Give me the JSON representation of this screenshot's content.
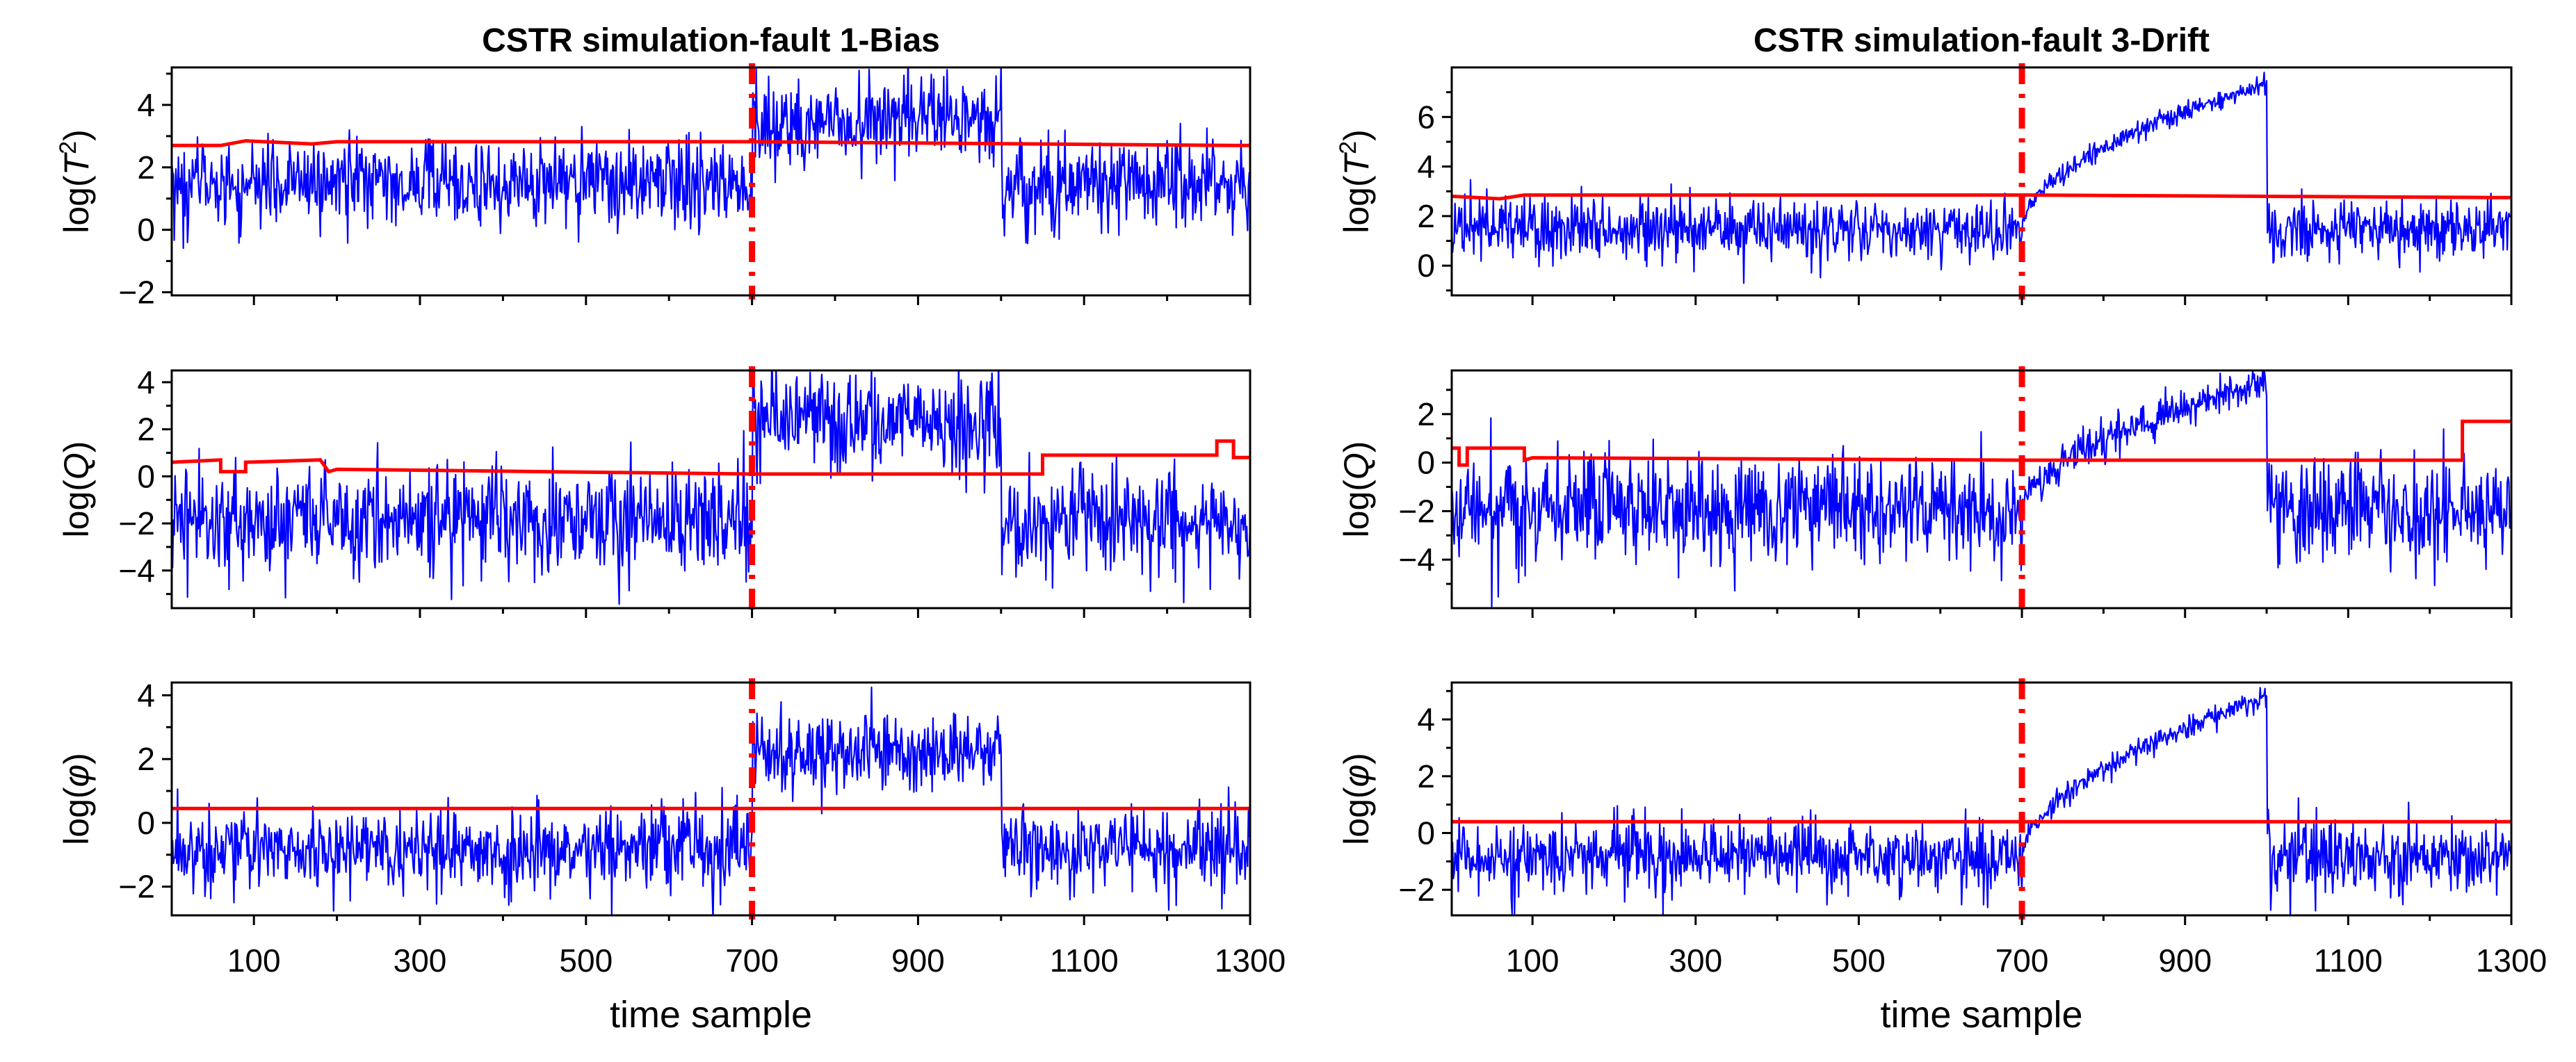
{
  "chart_data": {
    "type": "line",
    "panels": [
      {
        "title": "CSTR simulation-fault 1-Bias",
        "xlabel": "time sample",
        "xlim": [
          1,
          1300
        ],
        "xticks": [
          100,
          300,
          500,
          700,
          900,
          1100,
          1300
        ],
        "fault_start": 700,
        "fault_end": 1000,
        "subplots": [
          {
            "ylabel_base": "log(",
            "ylabel_var": "T",
            "ylabel_sup": "2",
            "ylabel_close": ")",
            "ylim": [
              -2.1,
              5.2
            ],
            "yticks": [
              -2,
              0,
              2,
              4
            ],
            "series": [
              {
                "name": "monitoring statistic",
                "color": "#0000ff",
                "baseline_mean": 1.5,
                "noise_sd": 0.7,
                "fault_profile": "step",
                "fault_level": 3.4
              },
              {
                "name": "control limit",
                "color": "#ff0000",
                "x": [
                  1,
                  60,
                  90,
                  170,
                  200,
                  700,
                  1280,
                  1300
                ],
                "y": [
                  2.7,
                  2.7,
                  2.85,
                  2.75,
                  2.82,
                  2.82,
                  2.7,
                  2.7
                ]
              }
            ]
          },
          {
            "ylabel_base": "log(",
            "ylabel_var": "Q",
            "ylabel_sup": "",
            "ylabel_close": ")",
            "ylim": [
              -5.6,
              4.5
            ],
            "yticks": [
              -4,
              -2,
              0,
              2,
              4
            ],
            "series": [
              {
                "name": "monitoring statistic",
                "color": "#0000ff",
                "baseline_mean": -1.8,
                "noise_sd": 1.1,
                "fault_profile": "step",
                "fault_level": 2.4
              },
              {
                "name": "control limit",
                "color": "#ff0000",
                "x": [
                  1,
                  60,
                  60,
                  90,
                  90,
                  180,
                  190,
                  200,
                  700,
                  1050,
                  1050,
                  1260,
                  1260,
                  1280,
                  1280,
                  1300
                ],
                "y": [
                  0.6,
                  0.7,
                  0.2,
                  0.2,
                  0.6,
                  0.7,
                  0.2,
                  0.3,
                  0.1,
                  0.1,
                  0.9,
                  0.9,
                  1.5,
                  1.5,
                  0.8,
                  0.8
                ]
              }
            ]
          },
          {
            "ylabel_base": "log(",
            "ylabel_var": "φ",
            "ylabel_sup": "",
            "ylabel_close": ")",
            "ylim": [
              -2.9,
              4.4
            ],
            "yticks": [
              -2,
              0,
              2,
              4
            ],
            "series": [
              {
                "name": "monitoring statistic",
                "color": "#0000ff",
                "baseline_mean": -0.8,
                "noise_sd": 0.6,
                "fault_profile": "step",
                "fault_level": 2.2
              },
              {
                "name": "control limit",
                "color": "#ff0000",
                "x": [
                  1,
                  1300
                ],
                "y": [
                  0.45,
                  0.45
                ]
              }
            ]
          }
        ]
      },
      {
        "title": "CSTR simulation-fault 3-Drift",
        "xlabel": "time sample",
        "xlim": [
          1,
          1300
        ],
        "xticks": [
          100,
          300,
          500,
          700,
          900,
          1100,
          1300
        ],
        "fault_start": 700,
        "fault_end": 1000,
        "subplots": [
          {
            "ylabel_base": "log(",
            "ylabel_var": "T",
            "ylabel_sup": "2",
            "ylabel_close": ")",
            "ylim": [
              -1.2,
              8.0
            ],
            "yticks": [
              0,
              2,
              4,
              6
            ],
            "series": [
              {
                "name": "monitoring statistic",
                "color": "#0000ff",
                "baseline_mean": 1.5,
                "noise_sd": 0.6,
                "fault_profile": "drift",
                "fault_level": 7.4
              },
              {
                "name": "control limit",
                "color": "#ff0000",
                "x": [
                  1,
                  60,
                  90,
                  700,
                  1280,
                  1300
                ],
                "y": [
                  2.8,
                  2.7,
                  2.85,
                  2.85,
                  2.75,
                  2.75
                ]
              }
            ]
          },
          {
            "ylabel_base": "log(",
            "ylabel_var": "Q",
            "ylabel_sup": "",
            "ylabel_close": ")",
            "ylim": [
              -6.0,
              3.8
            ],
            "yticks": [
              -4,
              -2,
              0,
              2
            ],
            "series": [
              {
                "name": "monitoring statistic",
                "color": "#0000ff",
                "baseline_mean": -1.9,
                "noise_sd": 1.1,
                "fault_profile": "drift",
                "fault_level": 3.3
              },
              {
                "name": "control limit",
                "color": "#ff0000",
                "x": [
                  1,
                  10,
                  10,
                  20,
                  20,
                  90,
                  90,
                  100,
                  700,
                  1240,
                  1240,
                  1300
                ],
                "y": [
                  0.6,
                  0.6,
                  -0.1,
                  -0.1,
                  0.6,
                  0.6,
                  0.1,
                  0.2,
                  0.1,
                  0.1,
                  1.7,
                  1.7
                ]
              }
            ]
          },
          {
            "ylabel_base": "log(",
            "ylabel_var": "φ",
            "ylabel_sup": "",
            "ylabel_close": ")",
            "ylim": [
              -2.9,
              5.3
            ],
            "yticks": [
              -2,
              0,
              2,
              4
            ],
            "series": [
              {
                "name": "monitoring statistic",
                "color": "#0000ff",
                "baseline_mean": -0.8,
                "noise_sd": 0.6,
                "fault_profile": "drift",
                "fault_level": 4.8
              },
              {
                "name": "control limit",
                "color": "#ff0000",
                "x": [
                  1,
                  1300
                ],
                "y": [
                  0.4,
                  0.4
                ]
              }
            ]
          }
        ]
      }
    ]
  }
}
